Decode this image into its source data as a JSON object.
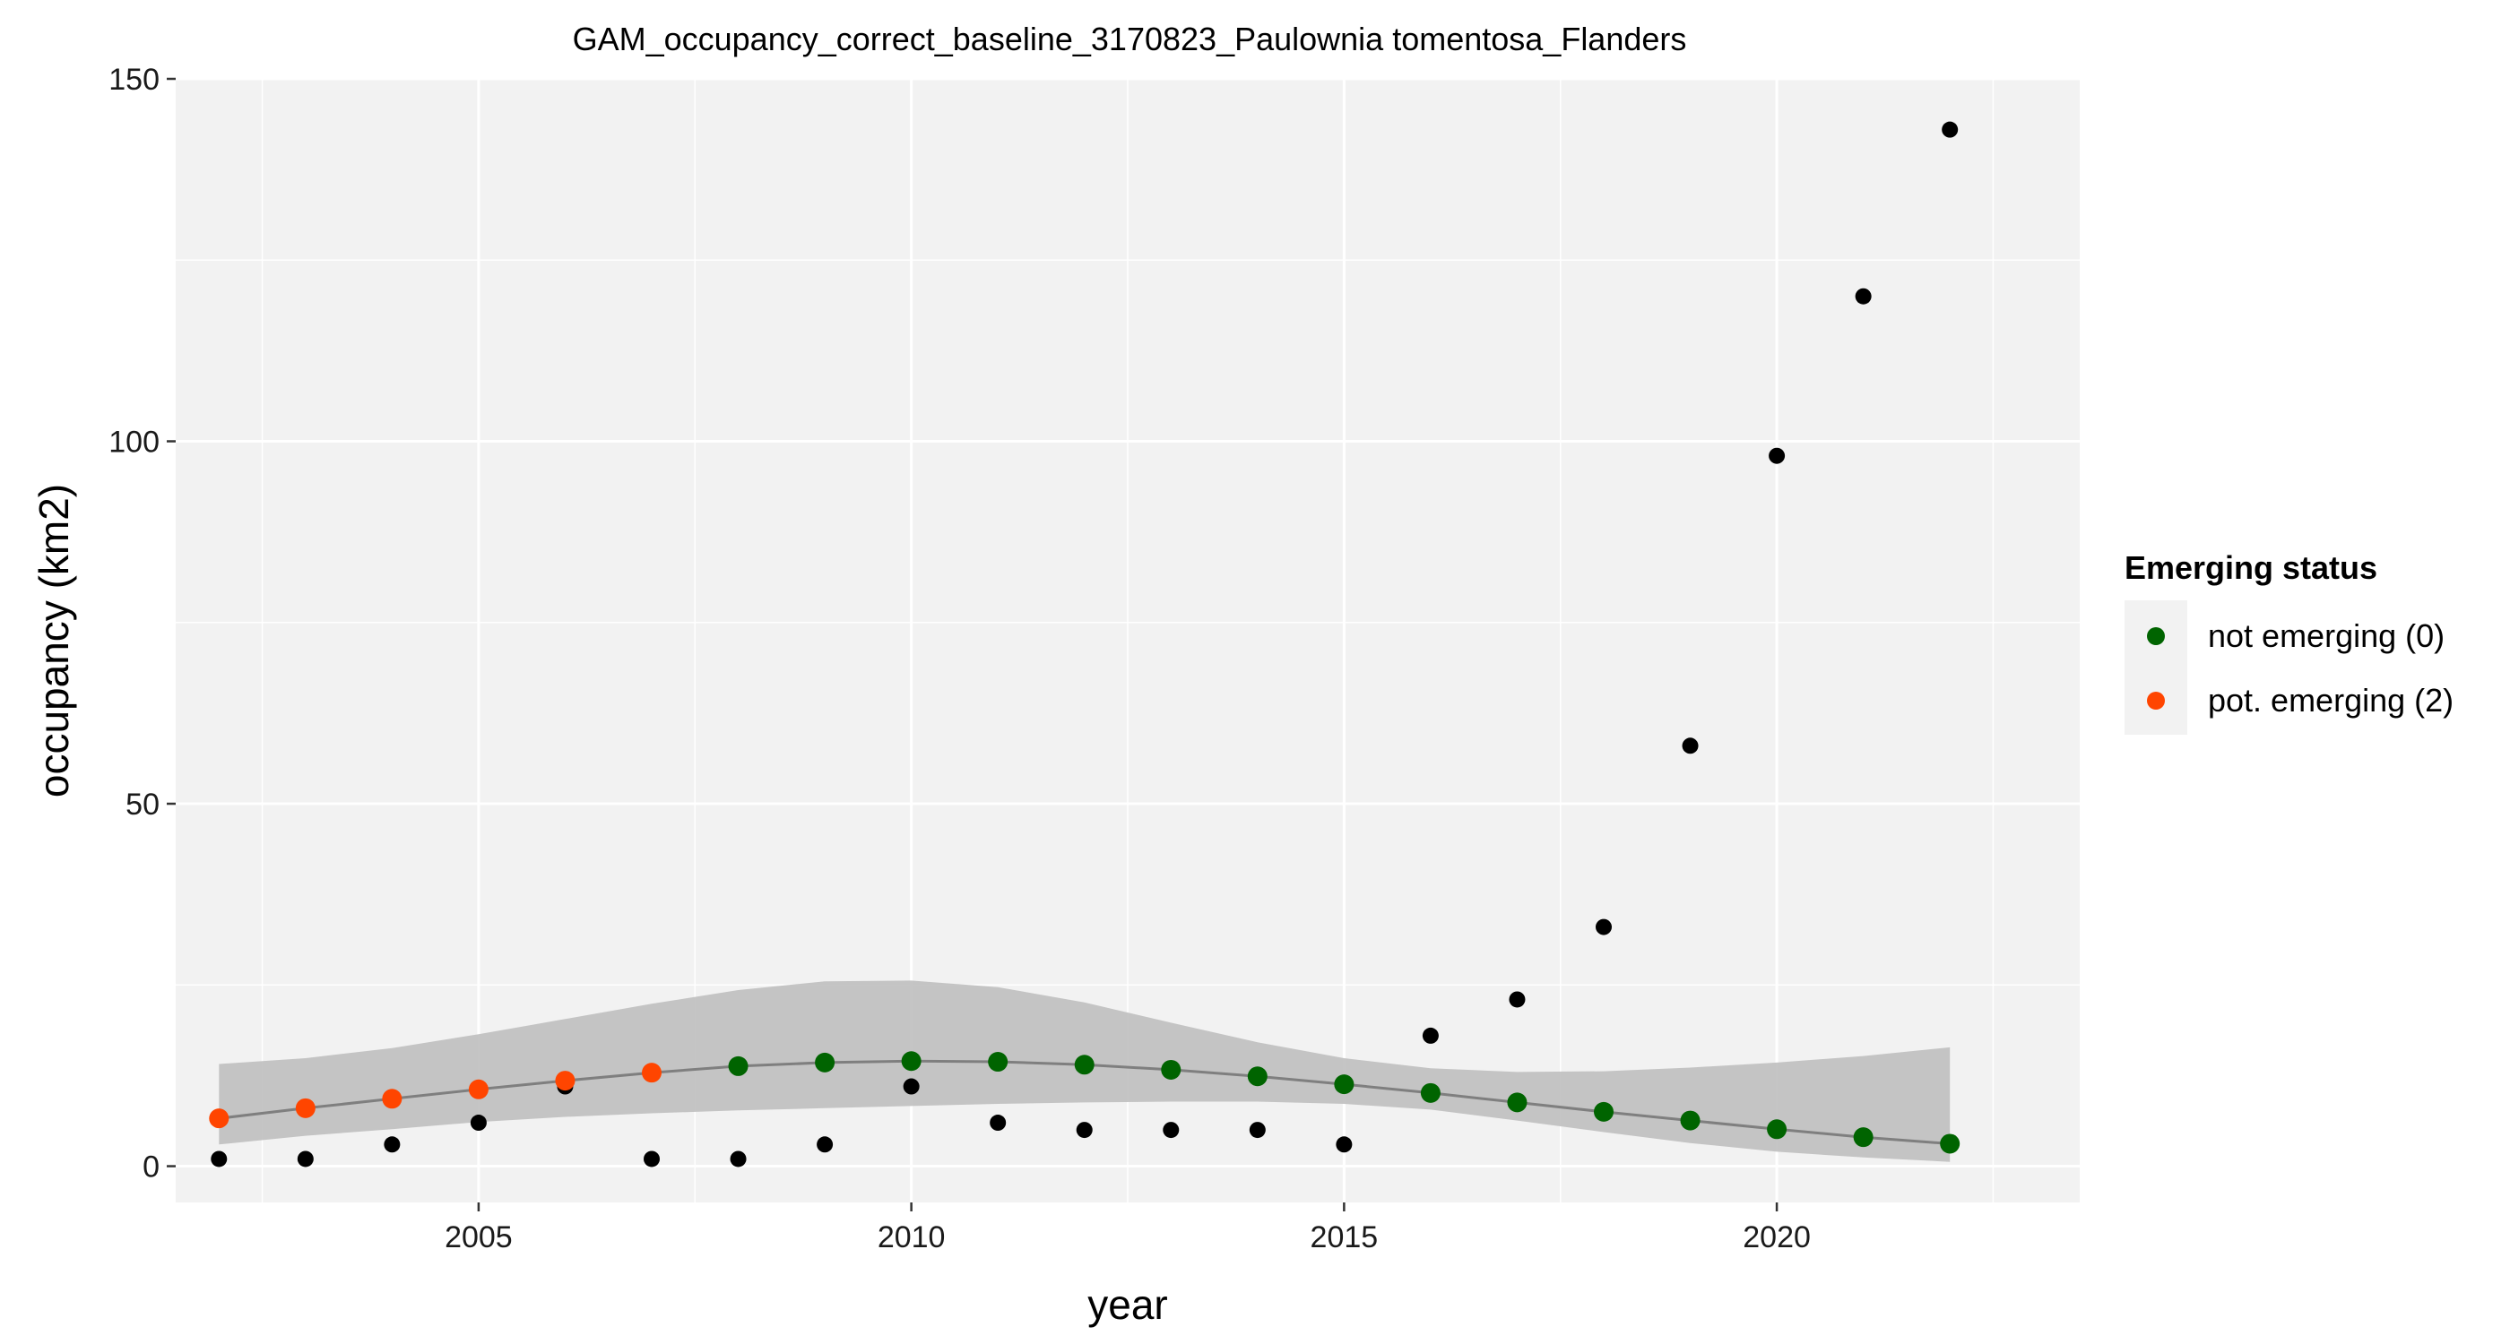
{
  "chart_data": {
    "type": "scatter",
    "title": "GAM_occupancy_correct_baseline_3170823_Paulownia tomentosa_Flanders",
    "xlabel": "year",
    "ylabel": "occupancy (km2)",
    "xlim": [
      2001.5,
      2023.5
    ],
    "ylim": [
      -5,
      150
    ],
    "xticks": [
      2005,
      2010,
      2015,
      2020
    ],
    "yticks": [
      0,
      50,
      100,
      150
    ],
    "grid": true,
    "panel_background": "#f2f2f2",
    "legend": {
      "title": "Emerging status",
      "position": "right",
      "entries": [
        {
          "label": "not emerging (0)",
          "color": "#006400"
        },
        {
          "label": "pot. emerging (2)",
          "color": "#ff4500"
        }
      ]
    },
    "observed": {
      "color": "#000000",
      "x": [
        2002,
        2003,
        2004,
        2005,
        2006,
        2007,
        2008,
        2009,
        2010,
        2011,
        2012,
        2013,
        2014,
        2015,
        2016,
        2017,
        2018,
        2019,
        2020,
        2021,
        2022
      ],
      "y": [
        1,
        1,
        3,
        6,
        11,
        1,
        1,
        3,
        11,
        6,
        5,
        5,
        5,
        3,
        18,
        23,
        33,
        58,
        98,
        120,
        143
      ]
    },
    "fitted": {
      "line_color": "#7f7f7f",
      "band_color": "#bfbfbf",
      "x": [
        2002,
        2003,
        2004,
        2005,
        2006,
        2007,
        2008,
        2009,
        2010,
        2011,
        2012,
        2013,
        2014,
        2015,
        2016,
        2017,
        2018,
        2019,
        2020,
        2021,
        2022
      ],
      "y": [
        6.6,
        8.0,
        9.3,
        10.6,
        11.8,
        12.9,
        13.8,
        14.3,
        14.5,
        14.4,
        14.0,
        13.3,
        12.4,
        11.3,
        10.1,
        8.8,
        7.5,
        6.3,
        5.1,
        4.0,
        3.1
      ],
      "lower": [
        3.0,
        4.2,
        5.1,
        6.1,
        6.8,
        7.3,
        7.7,
        8.0,
        8.3,
        8.6,
        8.8,
        8.9,
        8.9,
        8.6,
        7.8,
        6.3,
        4.7,
        3.2,
        2.0,
        1.2,
        0.6
      ],
      "upper": [
        14.1,
        14.9,
        16.3,
        18.2,
        20.3,
        22.4,
        24.3,
        25.5,
        25.6,
        24.7,
        22.6,
        19.8,
        17.1,
        14.9,
        13.5,
        13.0,
        13.1,
        13.6,
        14.3,
        15.2,
        16.4
      ],
      "status": [
        "pot. emerging (2)",
        "pot. emerging (2)",
        "pot. emerging (2)",
        "pot. emerging (2)",
        "pot. emerging (2)",
        "pot. emerging (2)",
        "not emerging (0)",
        "not emerging (0)",
        "not emerging (0)",
        "not emerging (0)",
        "not emerging (0)",
        "not emerging (0)",
        "not emerging (0)",
        "not emerging (0)",
        "not emerging (0)",
        "not emerging (0)",
        "not emerging (0)",
        "not emerging (0)",
        "not emerging (0)",
        "not emerging (0)",
        "not emerging (0)"
      ]
    }
  }
}
